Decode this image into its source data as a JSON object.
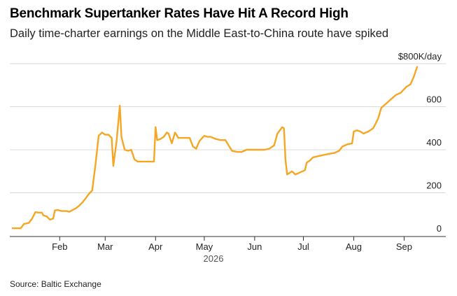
{
  "title": "Benchmark Supertanker Rates Have Hit A Record High",
  "subtitle": "Daily time-charter earnings on the Middle East-to-China route have spiked",
  "source": "Source: Baltic Exchange",
  "colors": {
    "line": "#f5a623",
    "grid": "#d9d9d9",
    "axis": "#333333"
  },
  "chart_data": {
    "type": "line",
    "title": "Benchmark Supertanker Rates Have Hit A Record High",
    "subtitle": "Daily time-charter earnings on the Middle East-to-China route have spiked",
    "xlabel": "2026",
    "ylabel": "",
    "ylim": [
      0,
      800
    ],
    "grid": true,
    "y_ticks": [
      {
        "value": 0,
        "label": "0"
      },
      {
        "value": 200,
        "label": "200"
      },
      {
        "value": 400,
        "label": "400"
      },
      {
        "value": 600,
        "label": "600"
      },
      {
        "value": 800,
        "label": "$800K/day"
      }
    ],
    "x_ticks": [
      {
        "date": "2026-02-01",
        "label": "Feb"
      },
      {
        "date": "2026-03-01",
        "label": "Mar"
      },
      {
        "date": "2026-04-01",
        "label": "Apr"
      },
      {
        "date": "2026-05-01",
        "label": "May"
      },
      {
        "date": "2026-06-01",
        "label": "Jun"
      },
      {
        "date": "2026-07-01",
        "label": "Jul"
      },
      {
        "date": "2026-08-01",
        "label": "Aug"
      },
      {
        "date": "2026-09-01",
        "label": "Sep"
      }
    ],
    "xlim": [
      "2026-01-03",
      "2026-09-30"
    ],
    "series": [
      {
        "points": [
          [
            "2026-01-03",
            35
          ],
          [
            "2026-01-08",
            35
          ],
          [
            "2026-01-10",
            55
          ],
          [
            "2026-01-13",
            60
          ],
          [
            "2026-01-15",
            80
          ],
          [
            "2026-01-17",
            110
          ],
          [
            "2026-01-19",
            108
          ],
          [
            "2026-01-21",
            108
          ],
          [
            "2026-01-22",
            95
          ],
          [
            "2026-01-24",
            90
          ],
          [
            "2026-01-26",
            75
          ],
          [
            "2026-01-28",
            80
          ],
          [
            "2026-01-29",
            118
          ],
          [
            "2026-01-31",
            120
          ],
          [
            "2026-02-02",
            115
          ],
          [
            "2026-02-05",
            115
          ],
          [
            "2026-02-07",
            112
          ],
          [
            "2026-02-09",
            120
          ],
          [
            "2026-02-11",
            128
          ],
          [
            "2026-02-13",
            140
          ],
          [
            "2026-02-15",
            155
          ],
          [
            "2026-02-17",
            175
          ],
          [
            "2026-02-19",
            195
          ],
          [
            "2026-02-21",
            210
          ],
          [
            "2026-02-23",
            330
          ],
          [
            "2026-02-25",
            465
          ],
          [
            "2026-02-27",
            480
          ],
          [
            "2026-03-01",
            470
          ],
          [
            "2026-03-03",
            470
          ],
          [
            "2026-03-05",
            455
          ],
          [
            "2026-03-06",
            325
          ],
          [
            "2026-03-08",
            440
          ],
          [
            "2026-03-10",
            605
          ],
          [
            "2026-03-11",
            460
          ],
          [
            "2026-03-13",
            400
          ],
          [
            "2026-03-15",
            395
          ],
          [
            "2026-03-17",
            400
          ],
          [
            "2026-03-19",
            355
          ],
          [
            "2026-03-21",
            345
          ],
          [
            "2026-03-24",
            345
          ],
          [
            "2026-03-27",
            345
          ],
          [
            "2026-03-30",
            345
          ],
          [
            "2026-03-31",
            345
          ],
          [
            "2026-04-01",
            505
          ],
          [
            "2026-04-02",
            445
          ],
          [
            "2026-04-04",
            450
          ],
          [
            "2026-04-06",
            460
          ],
          [
            "2026-04-08",
            480
          ],
          [
            "2026-04-09",
            475
          ],
          [
            "2026-04-11",
            430
          ],
          [
            "2026-04-13",
            480
          ],
          [
            "2026-04-15",
            455
          ],
          [
            "2026-04-17",
            455
          ],
          [
            "2026-04-20",
            455
          ],
          [
            "2026-04-22",
            455
          ],
          [
            "2026-04-24",
            415
          ],
          [
            "2026-04-26",
            405
          ],
          [
            "2026-04-28",
            440
          ],
          [
            "2026-05-01",
            465
          ],
          [
            "2026-05-03",
            460
          ],
          [
            "2026-05-05",
            460
          ],
          [
            "2026-05-08",
            450
          ],
          [
            "2026-05-11",
            445
          ],
          [
            "2026-05-14",
            445
          ],
          [
            "2026-05-16",
            420
          ],
          [
            "2026-05-18",
            395
          ],
          [
            "2026-05-21",
            390
          ],
          [
            "2026-05-24",
            390
          ],
          [
            "2026-05-27",
            400
          ],
          [
            "2026-05-30",
            400
          ],
          [
            "2026-06-03",
            400
          ],
          [
            "2026-06-07",
            400
          ],
          [
            "2026-06-10",
            405
          ],
          [
            "2026-06-13",
            420
          ],
          [
            "2026-06-15",
            475
          ],
          [
            "2026-06-18",
            505
          ],
          [
            "2026-06-19",
            500
          ],
          [
            "2026-06-20",
            350
          ],
          [
            "2026-06-21",
            285
          ],
          [
            "2026-06-24",
            300
          ],
          [
            "2026-06-26",
            285
          ],
          [
            "2026-06-29",
            295
          ],
          [
            "2026-07-02",
            305
          ],
          [
            "2026-07-03",
            340
          ],
          [
            "2026-07-05",
            350
          ],
          [
            "2026-07-07",
            365
          ],
          [
            "2026-07-10",
            370
          ],
          [
            "2026-07-13",
            375
          ],
          [
            "2026-07-16",
            380
          ],
          [
            "2026-07-20",
            385
          ],
          [
            "2026-07-23",
            395
          ],
          [
            "2026-07-25",
            415
          ],
          [
            "2026-07-28",
            425
          ],
          [
            "2026-07-31",
            430
          ],
          [
            "2026-08-01",
            485
          ],
          [
            "2026-08-03",
            490
          ],
          [
            "2026-08-05",
            485
          ],
          [
            "2026-08-07",
            475
          ],
          [
            "2026-08-10",
            485
          ],
          [
            "2026-08-13",
            500
          ],
          [
            "2026-08-16",
            545
          ],
          [
            "2026-08-18",
            595
          ],
          [
            "2026-08-21",
            615
          ],
          [
            "2026-08-24",
            635
          ],
          [
            "2026-08-27",
            655
          ],
          [
            "2026-08-30",
            665
          ],
          [
            "2026-09-02",
            690
          ],
          [
            "2026-09-05",
            705
          ],
          [
            "2026-09-07",
            740
          ],
          [
            "2026-09-09",
            785
          ]
        ]
      }
    ]
  }
}
